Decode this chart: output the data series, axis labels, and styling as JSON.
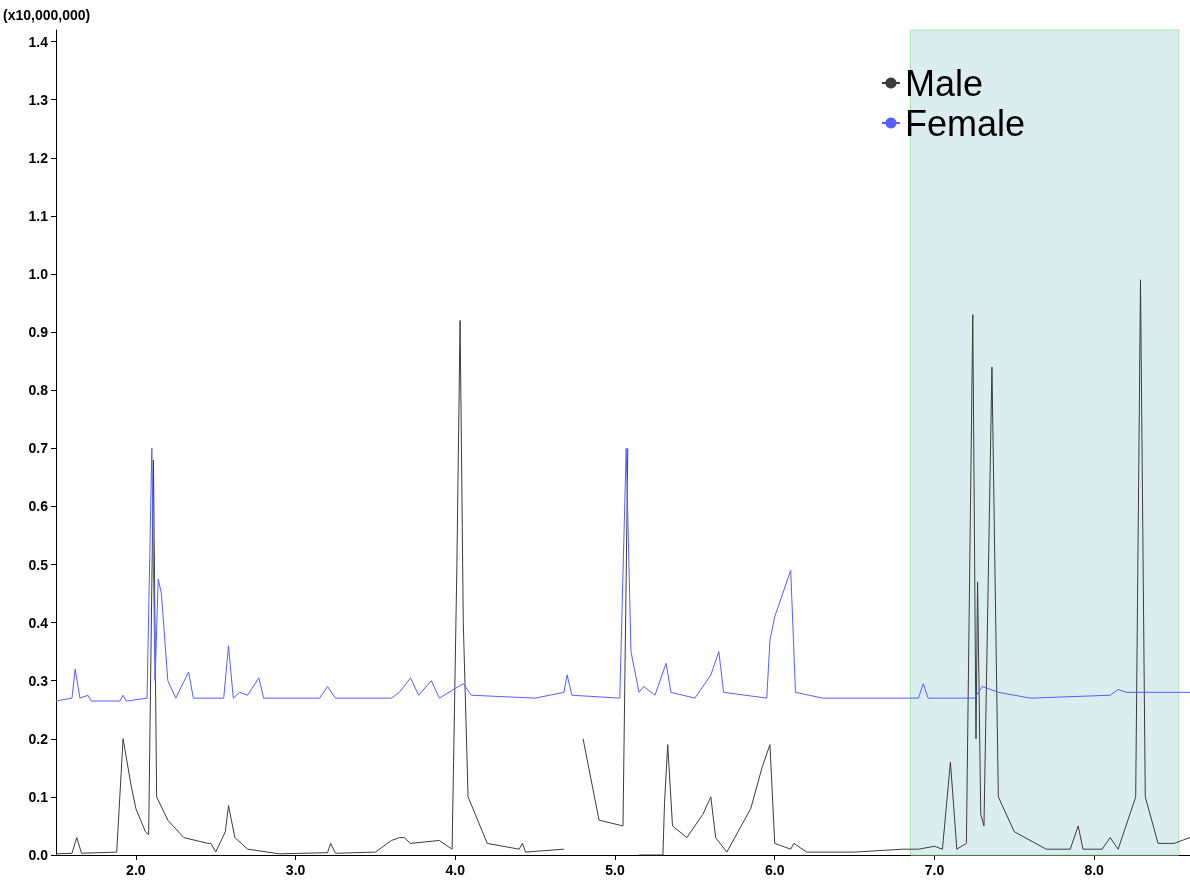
{
  "chart_data": {
    "type": "line",
    "ylabel": "(x10,000,000)",
    "xlim": [
      1.5,
      8.6
    ],
    "xticks": [
      {
        "value": 2,
        "label": "2.0"
      },
      {
        "value": 3,
        "label": "3.0"
      },
      {
        "value": 4,
        "label": "4.0"
      },
      {
        "value": 5,
        "label": "5.0"
      },
      {
        "value": 6,
        "label": "6.0"
      },
      {
        "value": 7,
        "label": "7.0"
      },
      {
        "value": 8,
        "label": "8.0"
      }
    ],
    "ylim": [
      0,
      1.42
    ],
    "yticks": [
      {
        "value": 0,
        "label": "0.0"
      },
      0.1,
      0.2,
      0.3,
      0.4,
      0.5,
      0.6,
      0.7,
      0.8,
      0.9,
      {
        "value": 1,
        "label": "1.0"
      },
      1.1,
      1.2,
      1.3,
      1.4
    ],
    "grid": false,
    "legend": "top right",
    "marker": "none",
    "line_style": "solid",
    "bands": [
      {
        "axis": "x",
        "from": 6.85,
        "to": 8.53,
        "color": "#dcedf0"
      }
    ],
    "series": [
      {
        "name": "Male",
        "color": "#3c3c3c",
        "x": [
          1.5,
          1.6,
          1.63,
          1.66,
          1.88,
          1.92,
          1.97,
          2.0,
          2.06,
          2.08,
          2.11,
          2.13,
          2.2,
          2.3,
          2.45,
          2.47,
          2.5,
          2.56,
          2.58,
          2.62,
          2.7,
          2.9,
          3.2,
          3.22,
          3.25,
          3.5,
          3.6,
          3.65,
          3.68,
          3.72,
          3.9,
          3.98,
          4.01,
          4.03,
          4.05,
          4.08,
          4.2,
          4.4,
          4.42,
          4.44,
          4.68,
          4.71,
          4.74,
          4.77,
          4.8,
          4.9,
          5.05,
          5.08,
          5.11,
          5.13,
          5.15,
          5.3,
          5.31,
          5.33,
          5.36,
          5.45,
          5.55,
          5.6,
          5.63,
          5.7,
          5.85,
          5.92,
          5.97,
          6.0,
          6.1,
          6.12,
          6.2,
          6.5,
          6.8,
          6.9,
          7.0,
          7.05,
          7.1,
          7.14,
          7.2,
          7.24,
          7.26,
          7.27,
          7.29,
          7.31,
          7.36,
          7.4,
          7.5,
          7.7,
          7.85,
          7.9,
          7.93,
          8.05,
          8.1,
          8.15,
          8.26,
          8.29,
          8.32,
          8.4,
          8.5,
          8.6
        ],
        "values": [
          0.002,
          0.003,
          0.03,
          0.003,
          0.005,
          0.2,
          0.12,
          0.08,
          0.04,
          0.035,
          0.68,
          0.1,
          0.06,
          0.03,
          0.02,
          0.02,
          0.005,
          0.04,
          0.085,
          0.03,
          0.01,
          0.002,
          0.004,
          0.02,
          0.003,
          0.005,
          0.025,
          0.03,
          0.03,
          0.02,
          0.025,
          0.01,
          0.5,
          0.92,
          0.4,
          0.1,
          0.02,
          0.01,
          0.02,
          0.005,
          0.01,
          null,
          null,
          null,
          0.2,
          0.06,
          0.05,
          0.7,
          null,
          null,
          0,
          0,
          0.09,
          0.19,
          0.05,
          0.03,
          0.07,
          0.1,
          0.03,
          0.005,
          0.08,
          0.15,
          0.19,
          0.02,
          0.01,
          0.02,
          0.005,
          0.005,
          0.01,
          0.01,
          0.015,
          0.01,
          0.16,
          0.01,
          0.02,
          0.93,
          0.2,
          0.47,
          0.07,
          0.05,
          0.84,
          0.1,
          0.04,
          0.01,
          0.01,
          0.05,
          0.01,
          0.01,
          0.03,
          0.01,
          0.1,
          0.99,
          0.1,
          0.02,
          0.02,
          0.03
        ]
      },
      {
        "name": "Female",
        "color": "#5560ff",
        "x": [
          1.5,
          1.6,
          1.62,
          1.65,
          1.7,
          1.72,
          1.9,
          1.92,
          1.94,
          2.07,
          2.1,
          2.12,
          2.14,
          2.16,
          2.2,
          2.25,
          2.33,
          2.36,
          2.55,
          2.58,
          2.61,
          2.65,
          2.7,
          2.77,
          2.8,
          3.15,
          3.2,
          3.25,
          3.6,
          3.65,
          3.72,
          3.77,
          3.85,
          3.9,
          4.05,
          4.1,
          4.5,
          4.68,
          4.7,
          4.73,
          5.03,
          5.07,
          5.1,
          5.15,
          5.18,
          5.25,
          5.32,
          5.35,
          5.5,
          5.6,
          5.65,
          5.68,
          5.95,
          5.97,
          6.0,
          6.1,
          6.13,
          6.3,
          6.9,
          6.93,
          6.96,
          7.25,
          7.3,
          7.4,
          7.6,
          8.1,
          8.15,
          8.2,
          8.6
        ],
        "values": [
          0.265,
          0.27,
          0.32,
          0.27,
          0.275,
          0.265,
          0.265,
          0.275,
          0.265,
          0.27,
          0.7,
          0.3,
          0.475,
          0.45,
          0.3,
          0.27,
          0.315,
          0.27,
          0.27,
          0.36,
          0.27,
          0.28,
          0.275,
          0.305,
          0.27,
          0.27,
          0.29,
          0.27,
          0.27,
          0.28,
          0.305,
          0.275,
          0.3,
          0.27,
          0.295,
          0.275,
          0.27,
          0.28,
          0.31,
          0.275,
          0.27,
          0.7,
          0.35,
          0.28,
          0.29,
          0.275,
          0.33,
          0.28,
          0.27,
          0.31,
          0.35,
          0.28,
          0.27,
          0.37,
          0.41,
          0.49,
          0.28,
          0.27,
          0.27,
          0.295,
          0.27,
          0.27,
          0.29,
          0.28,
          0.27,
          0.275,
          0.285,
          0.28,
          0.28
        ]
      }
    ]
  }
}
